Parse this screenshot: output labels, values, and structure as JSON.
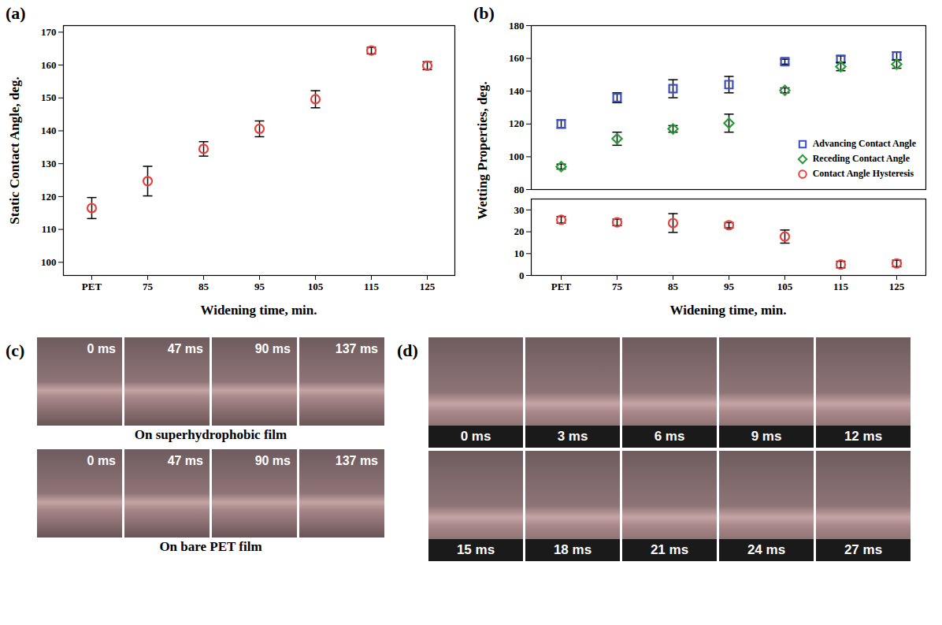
{
  "chart_data": [
    {
      "panel": "(a)",
      "type": "scatter",
      "x_label": "Widening time, min.",
      "y_label": "Static Contact Angle, deg.",
      "categories": [
        "PET",
        "75",
        "85",
        "95",
        "105",
        "115",
        "125"
      ],
      "series": [
        {
          "color": "#e8413c",
          "marker": "circle",
          "values": [
            116.5,
            124.7,
            134.5,
            140.6,
            149.6,
            164.4,
            159.8
          ],
          "errors": [
            3.2,
            4.5,
            2.2,
            2.4,
            2.6,
            1.0,
            1.2
          ]
        }
      ],
      "ylim": [
        96,
        172
      ],
      "yticks": [
        100,
        110,
        120,
        130,
        140,
        150,
        160,
        170
      ]
    },
    {
      "panel": "(b)",
      "type": "scatter",
      "x_label": "Widening time, min.",
      "y_label": "Wetting Properties, deg.",
      "categories": [
        "PET",
        "75",
        "85",
        "95",
        "105",
        "115",
        "125"
      ],
      "series": [
        {
          "name": "Advancing Contact Angle",
          "color": "#3b4fc4",
          "marker": "square",
          "values": [
            120,
            136,
            141.5,
            144,
            158,
            159.5,
            161.5
          ],
          "errors": [
            2.5,
            3,
            5.5,
            5,
            1.5,
            2,
            2.5
          ]
        },
        {
          "name": "Receding Contact Angle",
          "color": "#2e9a3c",
          "marker": "diamond",
          "values": [
            94,
            111,
            117,
            120.5,
            140.5,
            155,
            156.5
          ],
          "errors": [
            1.5,
            4,
            2,
            5.5,
            1.5,
            2.5,
            2.5
          ]
        },
        {
          "name": "Contact Angle Hysteresis",
          "color": "#e8413c",
          "marker": "circle",
          "values": [
            25.5,
            24.3,
            24,
            23,
            17.8,
            5,
            5.5
          ],
          "errors": [
            1.5,
            1.5,
            4.3,
            1.2,
            3,
            1.5,
            1.5
          ]
        }
      ],
      "ylim": [
        0,
        180
      ],
      "y_break": [
        35,
        80
      ],
      "yticks": [
        0,
        10,
        20,
        30,
        80,
        100,
        120,
        140,
        160,
        180
      ],
      "legend": "right"
    }
  ],
  "photo_panels": [
    {
      "panel": "(c)",
      "rows": [
        {
          "frames": [
            "0 ms",
            "47 ms",
            "90 ms",
            "137 ms"
          ],
          "caption": "On superhydrophobic film"
        },
        {
          "frames": [
            "0 ms",
            "47 ms",
            "90 ms",
            "137 ms"
          ],
          "caption": "On bare PET film"
        }
      ]
    },
    {
      "panel": "(d)",
      "rows": [
        {
          "frames": [
            "0 ms",
            "3 ms",
            "6 ms",
            "9 ms",
            "12 ms"
          ]
        },
        {
          "frames": [
            "15 ms",
            "18 ms",
            "21 ms",
            "24 ms",
            "27 ms"
          ]
        }
      ]
    }
  ]
}
